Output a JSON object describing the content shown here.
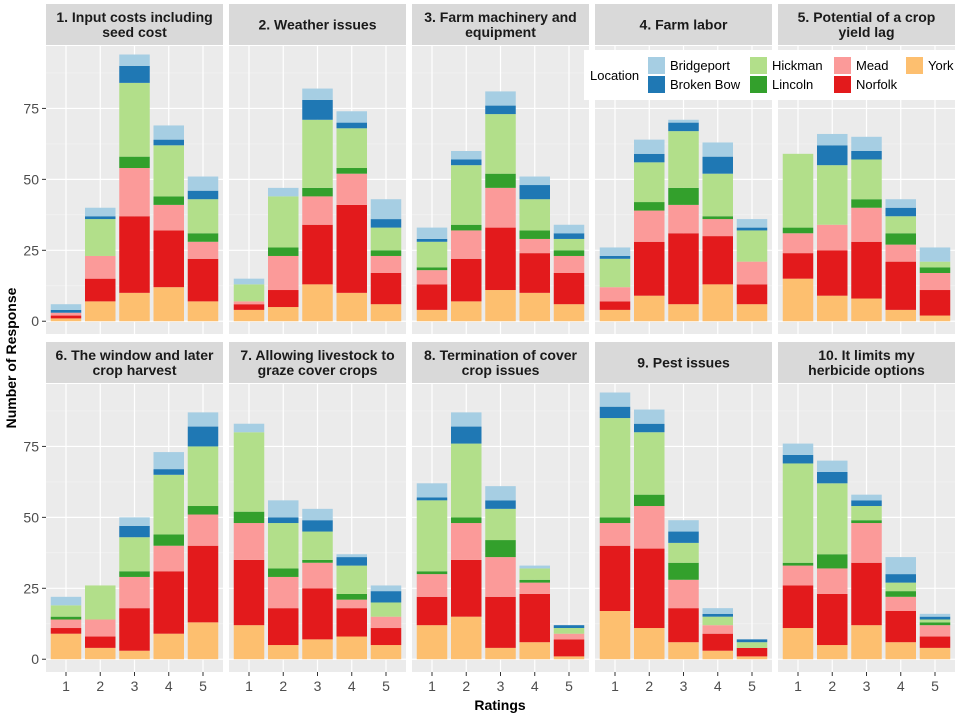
{
  "chart_data": {
    "type": "bar",
    "stacked": true,
    "xlabel": "Ratings",
    "ylabel": "Number of Response",
    "ylim": [
      0,
      97
    ],
    "yticks": [
      0,
      25,
      50,
      75
    ],
    "categories": [
      "1",
      "2",
      "3",
      "4",
      "5"
    ],
    "legend": {
      "title": "Location",
      "position": "top-right",
      "entries": [
        {
          "name": "Bridgeport",
          "color": "#a6cee3"
        },
        {
          "name": "Broken Bow",
          "color": "#1f78b4"
        },
        {
          "name": "Hickman",
          "color": "#b2df8a"
        },
        {
          "name": "Lincoln",
          "color": "#33a02c"
        },
        {
          "name": "Mead",
          "color": "#fb9a99"
        },
        {
          "name": "Norfolk",
          "color": "#e31a1c"
        },
        {
          "name": "York",
          "color": "#fdbf6f"
        }
      ]
    },
    "stack_order": [
      "York",
      "Norfolk",
      "Mead",
      "Lincoln",
      "Hickman",
      "Broken Bow",
      "Bridgeport"
    ],
    "panels": [
      {
        "title": "1. Input costs including seed cost",
        "values": {
          "York": [
            1,
            7,
            10,
            12,
            7
          ],
          "Norfolk": [
            1,
            8,
            27,
            20,
            15
          ],
          "Mead": [
            1,
            8,
            17,
            9,
            6
          ],
          "Lincoln": [
            0,
            0,
            4,
            3,
            3
          ],
          "Hickman": [
            0,
            13,
            26,
            18,
            12
          ],
          "Broken Bow": [
            1,
            1,
            6,
            2,
            3
          ],
          "Bridgeport": [
            2,
            3,
            4,
            5,
            5
          ]
        }
      },
      {
        "title": "2. Weather issues",
        "values": {
          "York": [
            4,
            5,
            13,
            10,
            6
          ],
          "Norfolk": [
            2,
            6,
            21,
            31,
            11
          ],
          "Mead": [
            1,
            12,
            10,
            11,
            6
          ],
          "Lincoln": [
            0,
            3,
            3,
            2,
            2
          ],
          "Hickman": [
            6,
            18,
            24,
            14,
            8
          ],
          "Broken Bow": [
            0,
            0,
            7,
            2,
            3
          ],
          "Bridgeport": [
            2,
            3,
            4,
            4,
            7
          ]
        }
      },
      {
        "title": "3. Farm machinery and equipment",
        "values": {
          "York": [
            4,
            7,
            11,
            10,
            6
          ],
          "Norfolk": [
            9,
            15,
            22,
            14,
            11
          ],
          "Mead": [
            5,
            10,
            14,
            5,
            6
          ],
          "Lincoln": [
            1,
            2,
            5,
            3,
            2
          ],
          "Hickman": [
            9,
            21,
            21,
            11,
            4
          ],
          "Broken Bow": [
            1,
            2,
            3,
            5,
            2
          ],
          "Bridgeport": [
            4,
            3,
            5,
            3,
            3
          ]
        }
      },
      {
        "title": "4. Farm labor",
        "values": {
          "York": [
            4,
            9,
            6,
            13,
            6
          ],
          "Norfolk": [
            3,
            19,
            25,
            17,
            7
          ],
          "Mead": [
            5,
            11,
            10,
            6,
            8
          ],
          "Lincoln": [
            0,
            3,
            6,
            1,
            0
          ],
          "Hickman": [
            10,
            14,
            20,
            15,
            11
          ],
          "Broken Bow": [
            1,
            3,
            3,
            6,
            1
          ],
          "Bridgeport": [
            3,
            5,
            1,
            5,
            3
          ]
        }
      },
      {
        "title": "5. Potential of a crop yield lag",
        "values": {
          "York": [
            15,
            9,
            8,
            4,
            2
          ],
          "Norfolk": [
            9,
            16,
            20,
            17,
            9
          ],
          "Mead": [
            7,
            9,
            12,
            6,
            6
          ],
          "Lincoln": [
            2,
            0,
            3,
            4,
            2
          ],
          "Hickman": [
            26,
            21,
            14,
            6,
            2
          ],
          "Broken Bow": [
            0,
            7,
            3,
            3,
            0
          ],
          "Bridgeport": [
            0,
            4,
            5,
            3,
            5
          ]
        }
      },
      {
        "title": "6. The window and later crop harvest",
        "values": {
          "York": [
            9,
            4,
            3,
            9,
            13
          ],
          "Norfolk": [
            2,
            4,
            15,
            22,
            27
          ],
          "Mead": [
            3,
            6,
            11,
            9,
            11
          ],
          "Lincoln": [
            1,
            0,
            2,
            4,
            3
          ],
          "Hickman": [
            4,
            12,
            12,
            21,
            21
          ],
          "Broken Bow": [
            0,
            0,
            4,
            2,
            7
          ],
          "Bridgeport": [
            3,
            0,
            3,
            6,
            5
          ]
        }
      },
      {
        "title": "7. Allowing livestock to graze cover crops",
        "values": {
          "York": [
            12,
            5,
            7,
            8,
            5
          ],
          "Norfolk": [
            23,
            13,
            18,
            10,
            6
          ],
          "Mead": [
            13,
            11,
            9,
            3,
            4
          ],
          "Lincoln": [
            4,
            3,
            1,
            2,
            0
          ],
          "Hickman": [
            28,
            16,
            10,
            10,
            5
          ],
          "Broken Bow": [
            0,
            2,
            4,
            3,
            4
          ],
          "Bridgeport": [
            3,
            6,
            4,
            1,
            2
          ]
        }
      },
      {
        "title": "8. Termination of cover crop issues",
        "values": {
          "York": [
            12,
            15,
            4,
            6,
            1
          ],
          "Norfolk": [
            10,
            20,
            18,
            17,
            6
          ],
          "Mead": [
            8,
            13,
            14,
            4,
            2
          ],
          "Lincoln": [
            1,
            2,
            6,
            1,
            0
          ],
          "Hickman": [
            25,
            26,
            11,
            4,
            2
          ],
          "Broken Bow": [
            1,
            6,
            3,
            0,
            1
          ],
          "Bridgeport": [
            5,
            5,
            5,
            1,
            0
          ]
        }
      },
      {
        "title": "9. Pest issues",
        "values": {
          "York": [
            17,
            11,
            6,
            3,
            1
          ],
          "Norfolk": [
            23,
            28,
            12,
            6,
            3
          ],
          "Mead": [
            8,
            15,
            10,
            3,
            0
          ],
          "Lincoln": [
            2,
            4,
            6,
            0,
            0
          ],
          "Hickman": [
            35,
            22,
            7,
            3,
            2
          ],
          "Broken Bow": [
            4,
            3,
            4,
            1,
            1
          ],
          "Bridgeport": [
            5,
            5,
            4,
            2,
            0
          ]
        }
      },
      {
        "title": "10. It limits my herbicide options",
        "values": {
          "York": [
            11,
            5,
            12,
            6,
            4
          ],
          "Norfolk": [
            15,
            18,
            22,
            11,
            4
          ],
          "Mead": [
            7,
            9,
            14,
            5,
            4
          ],
          "Lincoln": [
            1,
            5,
            1,
            2,
            1
          ],
          "Hickman": [
            35,
            25,
            5,
            3,
            1
          ],
          "Broken Bow": [
            3,
            4,
            2,
            3,
            1
          ],
          "Bridgeport": [
            4,
            4,
            2,
            6,
            1
          ]
        }
      }
    ]
  }
}
